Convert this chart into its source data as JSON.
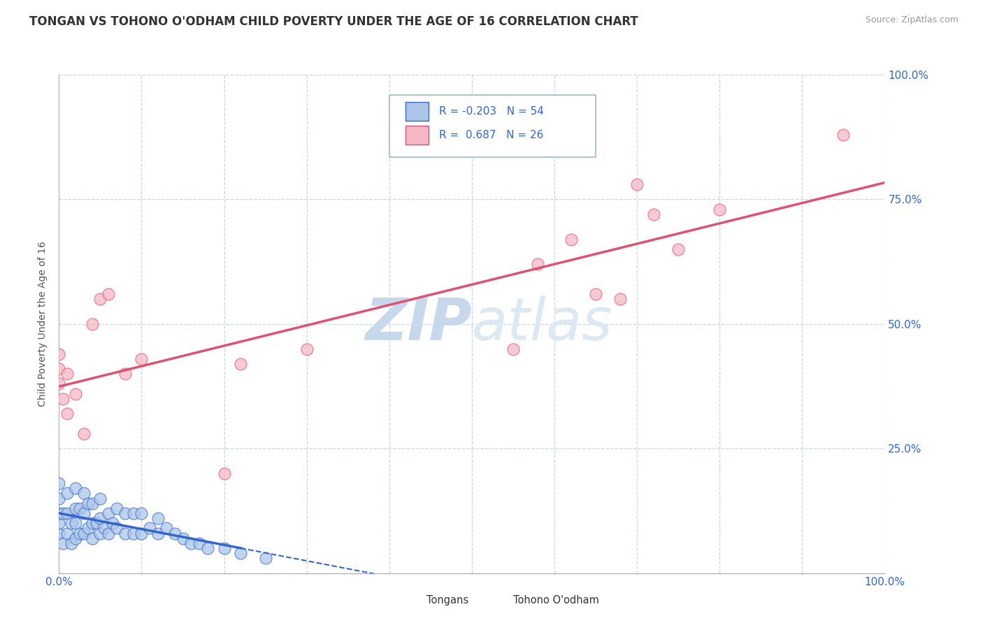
{
  "title": "TONGAN VS TOHONO O'ODHAM CHILD POVERTY UNDER THE AGE OF 16 CORRELATION CHART",
  "source": "Source: ZipAtlas.com",
  "ylabel": "Child Poverty Under the Age of 16",
  "xlim": [
    0,
    1
  ],
  "ylim": [
    0,
    1
  ],
  "xticks": [
    0.0,
    0.1,
    0.2,
    0.3,
    0.4,
    0.5,
    0.6,
    0.7,
    0.8,
    0.9,
    1.0
  ],
  "ytick_positions": [
    0.0,
    0.25,
    0.5,
    0.75,
    1.0
  ],
  "yticklabels": [
    "",
    "25.0%",
    "50.0%",
    "75.0%",
    "100.0%"
  ],
  "legend_R_tongan": "-0.203",
  "legend_N_tongan": "54",
  "legend_R_tohono": "0.687",
  "legend_N_tohono": "26",
  "tongan_color": "#adc6e8",
  "tohono_color": "#f5b8c4",
  "tongan_line_color": "#3366cc",
  "tohono_line_color": "#e05070",
  "background_color": "#ffffff",
  "grid_color": "#c8d4e8",
  "watermark_text": "ZIPatlas",
  "watermark_color": "#dce8f4",
  "title_fontsize": 12,
  "axis_label_fontsize": 10,
  "tick_fontsize": 11,
  "tongan_x": [
    0.0,
    0.0,
    0.0,
    0.0,
    0.0,
    0.005,
    0.005,
    0.01,
    0.01,
    0.01,
    0.015,
    0.015,
    0.02,
    0.02,
    0.02,
    0.02,
    0.025,
    0.025,
    0.03,
    0.03,
    0.03,
    0.035,
    0.035,
    0.04,
    0.04,
    0.04,
    0.045,
    0.05,
    0.05,
    0.05,
    0.055,
    0.06,
    0.06,
    0.065,
    0.07,
    0.07,
    0.08,
    0.08,
    0.09,
    0.09,
    0.1,
    0.1,
    0.11,
    0.12,
    0.12,
    0.13,
    0.14,
    0.15,
    0.16,
    0.17,
    0.18,
    0.2,
    0.22,
    0.25
  ],
  "tongan_y": [
    0.08,
    0.1,
    0.12,
    0.15,
    0.18,
    0.06,
    0.12,
    0.08,
    0.12,
    0.16,
    0.06,
    0.1,
    0.07,
    0.1,
    0.13,
    0.17,
    0.08,
    0.13,
    0.08,
    0.12,
    0.16,
    0.09,
    0.14,
    0.07,
    0.1,
    0.14,
    0.1,
    0.08,
    0.11,
    0.15,
    0.09,
    0.08,
    0.12,
    0.1,
    0.09,
    0.13,
    0.08,
    0.12,
    0.08,
    0.12,
    0.08,
    0.12,
    0.09,
    0.08,
    0.11,
    0.09,
    0.08,
    0.07,
    0.06,
    0.06,
    0.05,
    0.05,
    0.04,
    0.03
  ],
  "tohono_x": [
    0.0,
    0.0,
    0.0,
    0.005,
    0.01,
    0.01,
    0.02,
    0.03,
    0.04,
    0.05,
    0.06,
    0.08,
    0.1,
    0.2,
    0.22,
    0.3,
    0.55,
    0.58,
    0.62,
    0.65,
    0.68,
    0.7,
    0.72,
    0.75,
    0.8,
    0.95
  ],
  "tohono_y": [
    0.38,
    0.41,
    0.44,
    0.35,
    0.32,
    0.4,
    0.36,
    0.28,
    0.5,
    0.55,
    0.56,
    0.4,
    0.43,
    0.2,
    0.42,
    0.45,
    0.45,
    0.62,
    0.67,
    0.56,
    0.55,
    0.78,
    0.72,
    0.65,
    0.73,
    0.88
  ],
  "tongan_trendline_x0": 0.0,
  "tongan_trendline_x1": 0.25,
  "tongan_trendline_dash_x1": 0.55,
  "tohono_trendline_x0": 0.0,
  "tohono_trendline_x1": 1.0
}
